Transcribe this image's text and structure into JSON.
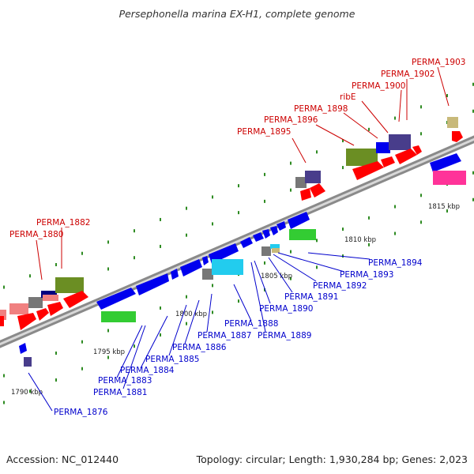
{
  "title": "Persephonella marina EX-H1, complete genome",
  "footer": {
    "accession": "Accession: NC_012440",
    "summary": "Topology: circular; Length: 1,930,284 bp; Genes: 2,023"
  },
  "colors": {
    "label_red": "#cc0000",
    "label_blue": "#0000cc",
    "backbone": "#999999",
    "tick": "#2e8b22",
    "red_gene": "#ff0000",
    "blue_gene": "#0000ee",
    "green_gene": "#33cc33",
    "olive_gene": "#6b8e23",
    "navy_gene": "#483d8b",
    "gray_gene": "#777777",
    "cyan_gene": "#22ccee",
    "pink_gene": "#ff3399",
    "salmon_gene": "#f08080",
    "khaki_gene": "#c8b97a"
  },
  "scale_labels": [
    {
      "id": "kbp-1790",
      "text": "1790 kbp"
    },
    {
      "id": "kbp-1795",
      "text": "1795 kbp"
    },
    {
      "id": "kbp-1800",
      "text": "1800 kbp"
    },
    {
      "id": "kbp-1805",
      "text": "1805 kbp"
    },
    {
      "id": "kbp-1810",
      "text": "1810 kbp"
    },
    {
      "id": "kbp-1815",
      "text": "1815 kbp"
    }
  ],
  "gene_labels_top": [
    {
      "id": "perma-1880",
      "text": "PERMA_1880"
    },
    {
      "id": "perma-1882",
      "text": "PERMA_1882"
    },
    {
      "id": "perma-1895",
      "text": "PERMA_1895"
    },
    {
      "id": "perma-1896",
      "text": "PERMA_1896"
    },
    {
      "id": "perma-1898",
      "text": "PERMA_1898"
    },
    {
      "id": "ribe",
      "text": "ribE"
    },
    {
      "id": "perma-1900",
      "text": "PERMA_1900"
    },
    {
      "id": "perma-1902",
      "text": "PERMA_1902"
    },
    {
      "id": "perma-1903",
      "text": "PERMA_1903"
    }
  ],
  "gene_labels_bottom": [
    {
      "id": "perma-1876",
      "text": "PERMA_1876"
    },
    {
      "id": "perma-1881",
      "text": "PERMA_1881"
    },
    {
      "id": "perma-1883",
      "text": "PERMA_1883"
    },
    {
      "id": "perma-1884",
      "text": "PERMA_1884"
    },
    {
      "id": "perma-1885",
      "text": "PERMA_1885"
    },
    {
      "id": "perma-1886",
      "text": "PERMA_1886"
    },
    {
      "id": "perma-1887",
      "text": "PERMA_1887"
    },
    {
      "id": "perma-1888",
      "text": "PERMA_1888"
    },
    {
      "id": "perma-1889",
      "text": "PERMA_1889"
    },
    {
      "id": "perma-1890",
      "text": "PERMA_1890"
    },
    {
      "id": "perma-1891",
      "text": "PERMA_1891"
    },
    {
      "id": "perma-1892",
      "text": "PERMA_1892"
    },
    {
      "id": "perma-1893",
      "text": "PERMA_1893"
    },
    {
      "id": "perma-1894",
      "text": "PERMA_1894"
    }
  ]
}
